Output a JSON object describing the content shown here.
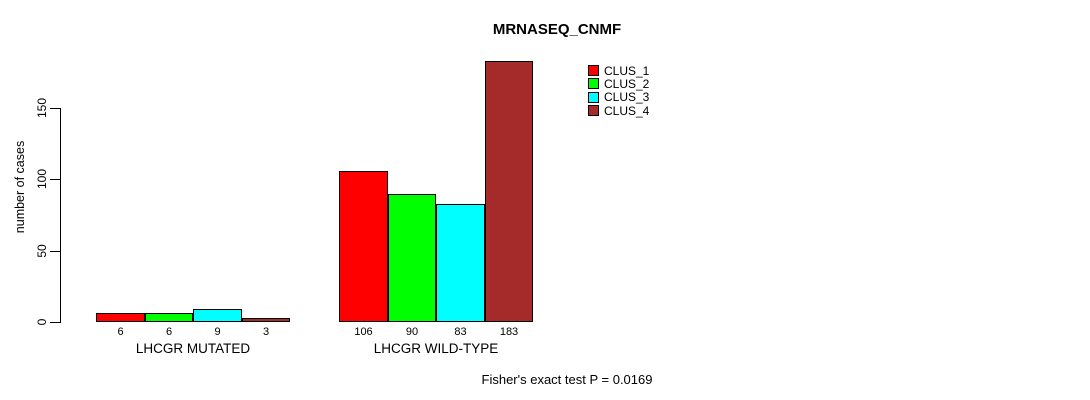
{
  "chart_data": {
    "type": "bar",
    "title": "MRNASEQ_CNMF",
    "ylabel": "number of cases",
    "xlabel": "",
    "categories": [
      "LHCGR MUTATED",
      "LHCGR WILD-TYPE"
    ],
    "series": [
      {
        "name": "CLUS_1",
        "color": "#FF0000",
        "values": [
          6,
          106
        ]
      },
      {
        "name": "CLUS_2",
        "color": "#00FF00",
        "values": [
          6,
          90
        ]
      },
      {
        "name": "CLUS_3",
        "color": "#00FFFF",
        "values": [
          9,
          83
        ]
      },
      {
        "name": "CLUS_4",
        "color": "#A52A2A",
        "values": [
          3,
          183
        ]
      }
    ],
    "yticks": [
      0,
      50,
      100,
      150
    ],
    "ylim": [
      0,
      183
    ],
    "grid": false,
    "legend_position": "top-right",
    "bar_value_labels": true,
    "caption": "Fisher's exact test P = 0.0169"
  }
}
